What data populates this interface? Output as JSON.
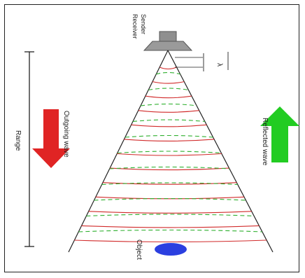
{
  "labels": {
    "sender": "Sender",
    "receiver": "Receiver",
    "wavelength_symbol": "λ",
    "range": "Range",
    "outgoing_wave": "Outgoing wave",
    "reflected_wave": "Reflected wave",
    "object": "Object"
  },
  "colors": {
    "transmitter_body": "#8f8f8f",
    "cone_lines": "#222222",
    "outgoing_arcs": "#d12a2a",
    "reflected_arcs": "#2fb02f",
    "down_arrow": "#e02424",
    "up_arrow": "#22cc22",
    "object": "#2b3fe0"
  },
  "counts": {
    "outgoing_arcs": 13,
    "reflected_arcs": 11
  }
}
